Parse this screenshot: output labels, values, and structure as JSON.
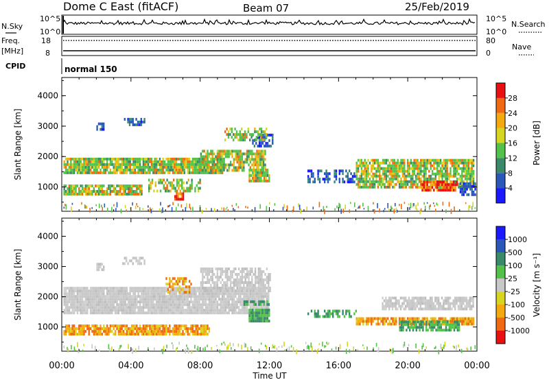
{
  "header": {
    "station": "Dome C East (fitACF)",
    "beam": "Beam 07",
    "date": "25/Feb/2019"
  },
  "strip_nsky": {
    "label": "N.Sky",
    "left_ticks": [
      "10^5",
      "10^0"
    ],
    "right_label": "N.Search",
    "right_ticks": [
      "10^5",
      "10^0"
    ]
  },
  "strip_freq": {
    "label_top": "Freq.",
    "label_bottom": "[MHz]",
    "left_ticks": [
      "18",
      "8"
    ],
    "right_label": "Nave",
    "right_ticks": [
      "80",
      "0"
    ]
  },
  "cpid": {
    "label": "CPID",
    "mode": "normal 150"
  },
  "chart_data": [
    {
      "type": "heatmap",
      "name": "power",
      "title": "",
      "xlabel": "",
      "ylabel": "Slant Range [km]",
      "ylim": [
        200,
        4600
      ],
      "yticks": [
        "1000",
        "2000",
        "3000",
        "4000"
      ],
      "xlim": [
        0,
        24
      ],
      "colorbar": {
        "label": "Power [dB]",
        "ticks": [
          "4",
          "8",
          "12",
          "16",
          "20",
          "24",
          "28"
        ],
        "colors": [
          "#1a1aff",
          "#2a58b8",
          "#3a8a6a",
          "#54c24a",
          "#d6d620",
          "#f2aa10",
          "#ef6a10",
          "#e81010"
        ]
      },
      "bands": [
        {
          "t0": 0.1,
          "t1": 9.4,
          "r0": 1420,
          "r1": 1920,
          "range": "grn",
          "density": 0.9
        },
        {
          "t0": 0.1,
          "t1": 4.6,
          "r0": 720,
          "r1": 1060,
          "range": "grn",
          "density": 0.85
        },
        {
          "t0": 5.0,
          "t1": 8.0,
          "r0": 820,
          "r1": 1220,
          "range": "grn",
          "density": 0.55
        },
        {
          "t0": 8.0,
          "t1": 11.8,
          "r0": 1500,
          "r1": 2200,
          "range": "grn",
          "density": 0.8
        },
        {
          "t0": 10.8,
          "t1": 12.0,
          "r0": 1150,
          "r1": 1520,
          "range": "grn",
          "density": 0.9
        },
        {
          "t0": 11.0,
          "t1": 12.2,
          "r0": 2300,
          "r1": 2700,
          "range": "blue",
          "density": 0.6
        },
        {
          "t0": 9.4,
          "t1": 11.8,
          "r0": 2500,
          "r1": 2950,
          "range": "grn",
          "density": 0.55
        },
        {
          "t0": 6.5,
          "t1": 7.0,
          "r0": 550,
          "r1": 800,
          "range": "red",
          "density": 0.9
        },
        {
          "t0": 14.2,
          "t1": 17.0,
          "r0": 1120,
          "r1": 1520,
          "range": "blue",
          "density": 0.5
        },
        {
          "t0": 17.0,
          "t1": 23.8,
          "r0": 1380,
          "r1": 1900,
          "range": "grn",
          "density": 0.8
        },
        {
          "t0": 17.0,
          "t1": 23.8,
          "r0": 950,
          "r1": 1340,
          "range": "grn",
          "density": 0.8
        },
        {
          "t0": 20.8,
          "t1": 22.8,
          "r0": 850,
          "r1": 1150,
          "range": "red",
          "density": 0.85
        },
        {
          "t0": 23.0,
          "t1": 23.9,
          "r0": 700,
          "r1": 1100,
          "range": "blue",
          "density": 0.7
        },
        {
          "t0": 2.0,
          "t1": 2.4,
          "r0": 2850,
          "r1": 3050,
          "range": "blue",
          "density": 0.8
        },
        {
          "t0": 3.5,
          "t1": 4.8,
          "r0": 3000,
          "r1": 3250,
          "range": "blue",
          "density": 0.6
        }
      ]
    },
    {
      "type": "heatmap",
      "name": "velocity",
      "title": "",
      "xlabel": "Time UT",
      "ylabel": "Slant Range [km]",
      "ylim": [
        200,
        4600
      ],
      "yticks": [
        "1000",
        "2000",
        "3000",
        "4000"
      ],
      "xlim": [
        0,
        24
      ],
      "xticks": [
        "00:00",
        "04:00",
        "08:00",
        "12:00",
        "16:00",
        "20:00",
        "00:00"
      ],
      "colorbar": {
        "label": "Velocity [m s⁻¹]",
        "ticks": [
          "-1000",
          "-500",
          "-100",
          "-25",
          "25",
          "100",
          "500",
          "1000"
        ],
        "colors": [
          "#e81010",
          "#ef6a10",
          "#f2aa10",
          "#d6d620",
          "#c8c8c8",
          "#54c24a",
          "#3a8a6a",
          "#2a58b8",
          "#1a1aff"
        ]
      },
      "bands": [
        {
          "t0": 0.1,
          "t1": 12.0,
          "r0": 1420,
          "r1": 2250,
          "range": "gray",
          "density": 0.95
        },
        {
          "t0": 8.0,
          "t1": 12.0,
          "r0": 2150,
          "r1": 2900,
          "range": "gray",
          "density": 0.7
        },
        {
          "t0": 0.1,
          "t1": 8.5,
          "r0": 720,
          "r1": 1080,
          "range": "orange",
          "density": 0.85
        },
        {
          "t0": 10.8,
          "t1": 12.0,
          "r0": 1150,
          "r1": 1520,
          "range": "green",
          "density": 0.9
        },
        {
          "t0": 10.5,
          "t1": 12.0,
          "r0": 1700,
          "r1": 1850,
          "range": "green",
          "density": 0.6
        },
        {
          "t0": 14.2,
          "t1": 17.0,
          "r0": 1300,
          "r1": 1500,
          "range": "green",
          "density": 0.5
        },
        {
          "t0": 17.0,
          "t1": 23.8,
          "r0": 1050,
          "r1": 1320,
          "range": "orange",
          "density": 0.85
        },
        {
          "t0": 19.5,
          "t1": 23.0,
          "r0": 850,
          "r1": 1200,
          "range": "green",
          "density": 0.8
        },
        {
          "t0": 18.5,
          "t1": 23.8,
          "r0": 1550,
          "r1": 1950,
          "range": "gray",
          "density": 0.8
        },
        {
          "t0": 6.0,
          "t1": 7.5,
          "r0": 2100,
          "r1": 2600,
          "range": "orange",
          "density": 0.5
        },
        {
          "t0": 2.0,
          "t1": 2.4,
          "r0": 2850,
          "r1": 3050,
          "range": "gray",
          "density": 0.8
        },
        {
          "t0": 3.5,
          "t1": 4.8,
          "r0": 3050,
          "r1": 3250,
          "range": "gray",
          "density": 0.6
        }
      ]
    }
  ]
}
